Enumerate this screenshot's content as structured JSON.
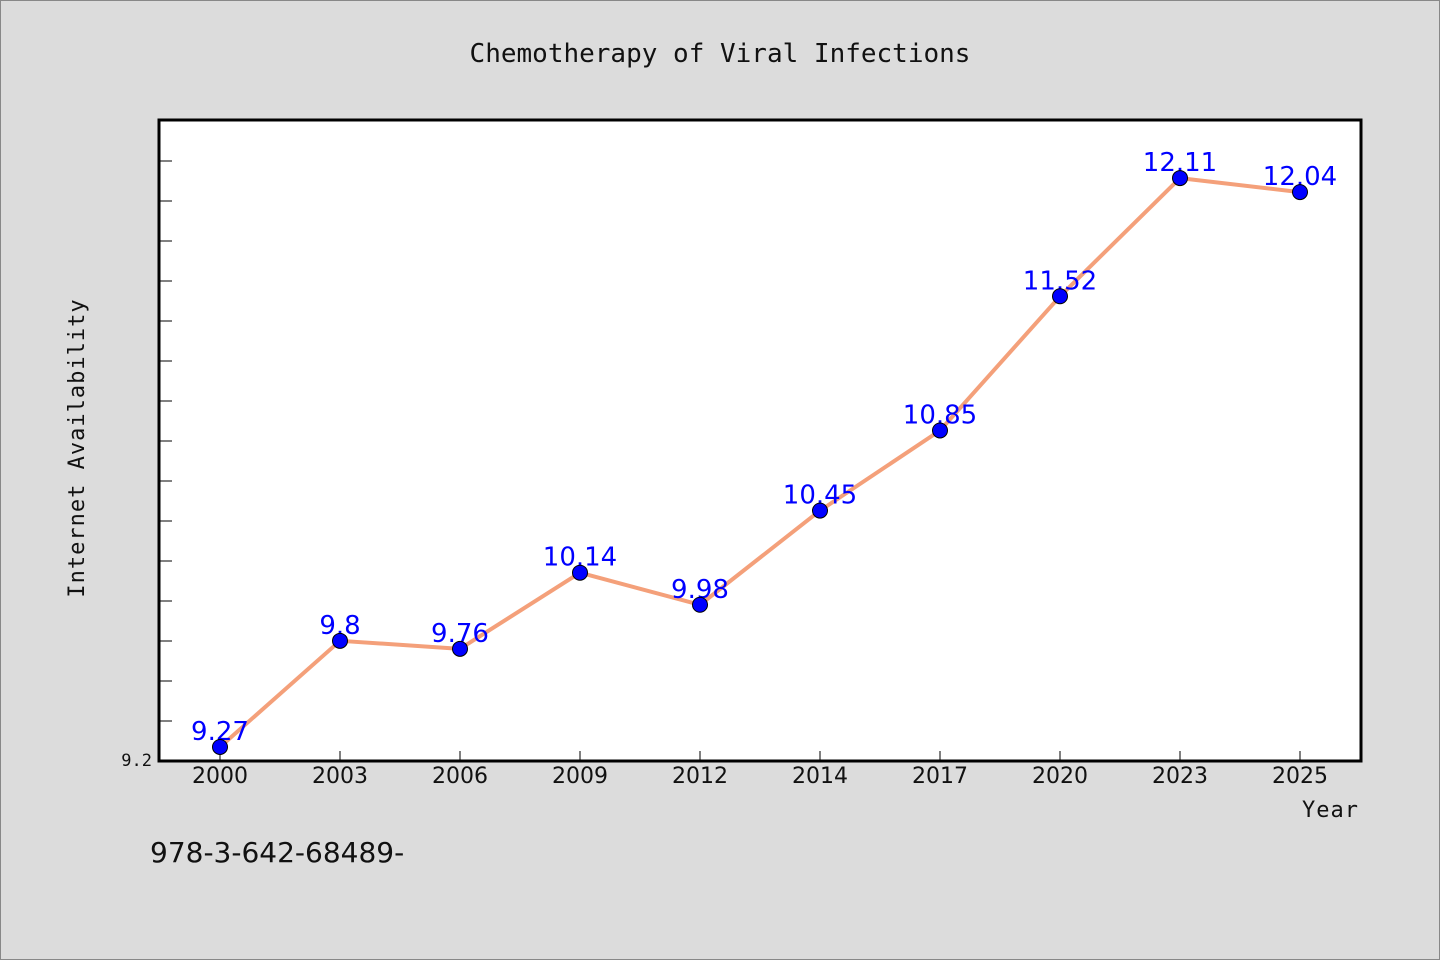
{
  "chart_data": {
    "type": "line",
    "title": "Chemotherapy of Viral Infections",
    "xlabel": "Year",
    "ylabel": "Internet Availability",
    "categories": [
      "2000",
      "2003",
      "2006",
      "2009",
      "2012",
      "2014",
      "2017",
      "2020",
      "2023",
      "2025"
    ],
    "series": [
      {
        "name": "",
        "values": [
          9.27,
          9.8,
          9.76,
          10.14,
          9.98,
          10.45,
          10.85,
          11.52,
          12.11,
          12.04
        ],
        "labels": [
          "9.27",
          "9.8",
          "9.76",
          "10.14",
          "9.98",
          "10.45",
          "10.85",
          "11.52",
          "12.11",
          "12.04"
        ]
      }
    ],
    "yticks": [
      "9.2"
    ],
    "ylim": [
      9.2,
      12.4
    ],
    "grid": false,
    "colors": {
      "line": "#f4a07a",
      "marker": "#0000ff",
      "data_label": "#0000ff",
      "plot_bg": "#ffffff",
      "page_bg": "#dcdcdc"
    }
  },
  "footer": {
    "isbn": "978-3-642-68489-"
  }
}
